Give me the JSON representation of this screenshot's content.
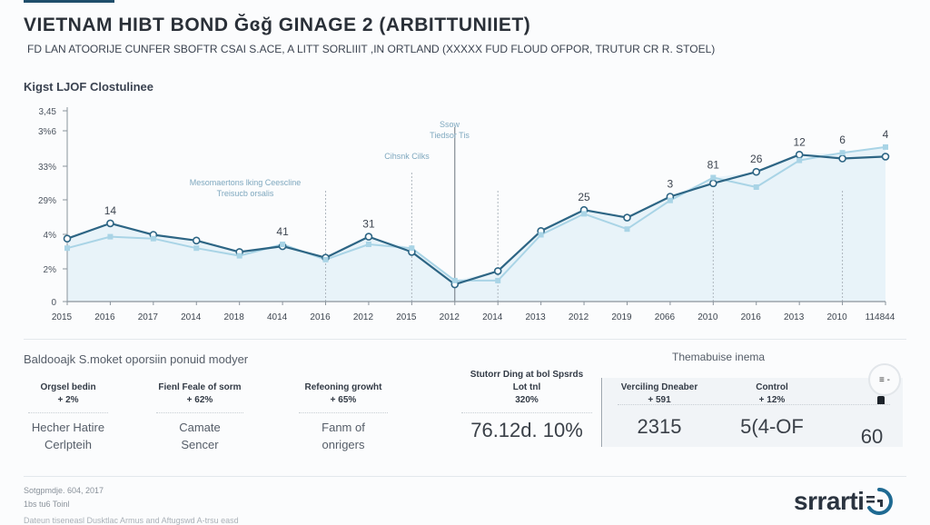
{
  "header": {
    "title": "VIETNAM HIBT BOND Ğɞğ GINAGE 2 (ARBITTUNIIET)",
    "subtitle": "FD LAN ATOORIJE CUNFER SBOFTR CSAI S.ACE, A LITT SORLIIIT ,IN ORTLAND (XXXXX FUD FLOUD OFPOR, TRUTUR CR R. STOEL)"
  },
  "chart_data": {
    "type": "line",
    "title": "Kigst LJOF Clostulinee",
    "xlabel": "",
    "ylabel": "",
    "categories": [
      "2015",
      "2016",
      "2017",
      "2014",
      "2018",
      "4014",
      "2016",
      "2012",
      "2015",
      "2012",
      "2014",
      "2013",
      "2012",
      "2019",
      "2066",
      "2010",
      "2016",
      "2013",
      "2010",
      "114844"
    ],
    "y_tick_labels": [
      "0",
      "2%",
      "4%",
      "29%",
      "33%",
      "3%6",
      "3,45"
    ],
    "ylim": [
      0,
      10
    ],
    "grid": false,
    "area_fill": true,
    "series": [
      {
        "name": "primary",
        "color": "#2d6584",
        "values": [
          3.3,
          4.1,
          3.5,
          3.2,
          2.6,
          2.9,
          2.3,
          3.4,
          2.6,
          0.9,
          1.6,
          3.7,
          4.8,
          4.4,
          5.5,
          6.2,
          6.8,
          7.7,
          7.5,
          7.6
        ]
      },
      {
        "name": "secondary",
        "color": "#a9d4e6",
        "values": [
          2.8,
          3.4,
          3.3,
          2.8,
          2.4,
          3.0,
          2.2,
          3.0,
          2.8,
          1.1,
          1.1,
          3.5,
          4.6,
          3.8,
          5.3,
          6.5,
          6.0,
          7.4,
          7.8,
          8.1
        ]
      }
    ],
    "point_labels": [
      {
        "index": 1,
        "text": "14"
      },
      {
        "index": 5,
        "text": "41"
      },
      {
        "index": 7,
        "text": "31"
      },
      {
        "index": 12,
        "text": "25"
      },
      {
        "index": 14,
        "text": "3"
      },
      {
        "index": 15,
        "text": "81"
      },
      {
        "index": 16,
        "text": "26"
      },
      {
        "index": 17,
        "text": "12"
      },
      {
        "index": 18,
        "text": "6"
      },
      {
        "index": 19,
        "text": "4"
      }
    ],
    "annotations": [
      {
        "index": 6,
        "lines": [
          "Mesomaertons lking Ceescline",
          "Treisucb orsalis"
        ]
      },
      {
        "index": 8,
        "lines": [
          "Cihsnk Cilks"
        ]
      },
      {
        "index": 9,
        "lines": [
          "Ssow",
          "Tiedsor Tis"
        ]
      }
    ],
    "vlines": [
      6,
      8,
      9,
      10,
      15,
      18
    ]
  },
  "stats": {
    "title": "Baldooajk S.moket oporsiin ponuid modyer",
    "right_title": "Themabuise inema",
    "items": [
      {
        "label": "Orgsel bedin",
        "value": "+ 2%",
        "desc_lines": [
          "Hecher Hatire",
          "Cerlpteih"
        ]
      },
      {
        "label": "Fienl Feale of sorm",
        "value": "+ 62%",
        "desc_lines": [
          "Camate",
          "Sencer"
        ]
      },
      {
        "label": "Refeoning growht",
        "value": "+ 65%",
        "desc_lines": [
          "Fanm of",
          "onrigers"
        ]
      },
      {
        "label": "Stutorr Ding at bol Spsrds",
        "sublabel": "Lot tnl",
        "value": "320%",
        "big": "76.12d. 10%"
      },
      {
        "label": "Verciling Dneaber",
        "value": "+ 591",
        "big": "2315"
      },
      {
        "label": "Control",
        "value": "+ 12%",
        "big": "5(4-OF"
      },
      {
        "label": "",
        "value": "",
        "big": "60"
      }
    ],
    "circle_button_label": "≡ -"
  },
  "footer": {
    "date": "Sotgpmdje. 604, 2017",
    "source": "1bs tu6 Toinl",
    "note": "Dateun tiseneasl Dusktlac Armus and Aftugswd A-trsu easd",
    "logo_text": "srrarti"
  }
}
